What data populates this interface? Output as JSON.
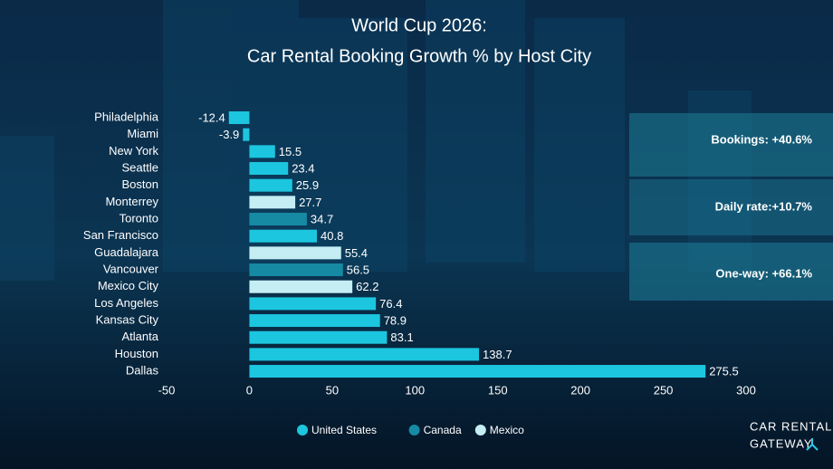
{
  "chart_data": {
    "type": "hbar",
    "title": [
      "World Cup 2026:",
      "Car Rental Booking Growth % by Host City"
    ],
    "categories": [
      "Philadelphia",
      "Miami",
      "New York",
      "Seattle",
      "Boston",
      "Monterrey",
      "Toronto",
      "San Francisco",
      "Guadalajara",
      "Vancouver",
      "Mexico City",
      "Los Angeles",
      "Kansas City",
      "Atlanta",
      "Houston",
      "Dallas"
    ],
    "series": [
      {
        "name": "United States",
        "color": "#1cc6df",
        "values": [
          -12.4,
          -3.9,
          15.5,
          23.4,
          25.9,
          null,
          null,
          40.8,
          null,
          null,
          null,
          76.4,
          78.9,
          83.1,
          138.7,
          275.5
        ]
      },
      {
        "name": "Canada",
        "color": "#168aa3",
        "values": [
          null,
          null,
          null,
          null,
          null,
          null,
          34.7,
          null,
          null,
          56.5,
          null,
          null,
          null,
          null,
          null,
          null
        ]
      },
      {
        "name": "Mexico",
        "color": "#c4eef4",
        "values": [
          null,
          null,
          null,
          null,
          null,
          27.7,
          null,
          null,
          55.4,
          null,
          62.2,
          null,
          null,
          null,
          null,
          null
        ]
      }
    ],
    "xlim": [
      -50,
      300
    ],
    "xticks": [
      -50,
      0,
      50,
      100,
      150,
      200,
      250,
      300
    ],
    "annotations": [
      "Bookings: +40.6%",
      "Daily rate:+10.7%",
      "One-way: +66.1%"
    ],
    "brand": [
      "CAR RENTAL",
      "GATEWAY"
    ],
    "legend": "bottom"
  }
}
